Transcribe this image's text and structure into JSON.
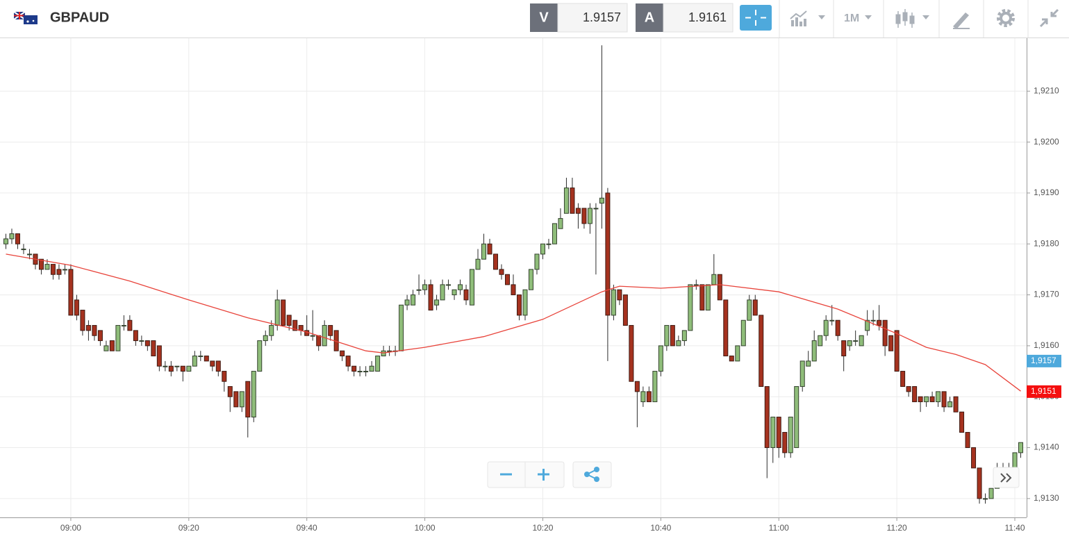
{
  "toolbar": {
    "symbol": "GBPAUD",
    "bid_label": "V",
    "bid": "1.9157",
    "ask_label": "A",
    "ask": "1.9161",
    "interval": "1M"
  },
  "chart_data": {
    "type": "candlestick",
    "x": [
      "08:49",
      "08:50",
      "08:51",
      "08:52",
      "08:53",
      "08:54",
      "08:55",
      "08:56",
      "08:57",
      "08:58",
      "08:59",
      "09:00",
      "09:01",
      "09:02",
      "09:03",
      "09:04",
      "09:05",
      "09:06",
      "09:07",
      "09:08",
      "09:09",
      "09:10",
      "09:11",
      "09:12",
      "09:13",
      "09:14",
      "09:15",
      "09:16",
      "09:17",
      "09:18",
      "09:19",
      "09:20",
      "09:21",
      "09:22",
      "09:23",
      "09:24",
      "09:25",
      "09:26",
      "09:27",
      "09:28",
      "09:29",
      "09:30",
      "09:31",
      "09:32",
      "09:33",
      "09:34",
      "09:35",
      "09:36",
      "09:37",
      "09:38",
      "09:39",
      "09:40",
      "09:41",
      "09:42",
      "09:43",
      "09:44",
      "09:45",
      "09:46",
      "09:47",
      "09:48",
      "09:49",
      "09:50",
      "09:51",
      "09:52",
      "09:53",
      "09:54",
      "09:55",
      "09:56",
      "09:57",
      "09:58",
      "09:59",
      "10:00",
      "10:01",
      "10:02",
      "10:03",
      "10:04",
      "10:05",
      "10:06",
      "10:07",
      "10:08",
      "10:09",
      "10:10",
      "10:11",
      "10:12",
      "10:13",
      "10:14",
      "10:15",
      "10:16",
      "10:17",
      "10:18",
      "10:19",
      "10:20",
      "10:21",
      "10:22",
      "10:23",
      "10:24",
      "10:25",
      "10:26",
      "10:27",
      "10:28",
      "10:29",
      "10:30",
      "10:31",
      "10:32",
      "10:33",
      "10:34",
      "10:35",
      "10:36",
      "10:37",
      "10:38",
      "10:39",
      "10:40",
      "10:41",
      "10:42",
      "10:43",
      "10:44",
      "10:45",
      "10:46",
      "10:47",
      "10:48",
      "10:49",
      "10:50",
      "10:51",
      "10:52",
      "10:53",
      "10:54",
      "10:55",
      "10:56",
      "10:57",
      "10:58",
      "10:59",
      "11:00",
      "11:01",
      "11:02",
      "11:03",
      "11:04",
      "11:05",
      "11:06",
      "11:07",
      "11:08",
      "11:09",
      "11:10",
      "11:11",
      "11:12",
      "11:13",
      "11:14",
      "11:15",
      "11:16",
      "11:17",
      "11:18",
      "11:19",
      "11:20",
      "11:21",
      "11:22",
      "11:23",
      "11:24",
      "11:25",
      "11:26",
      "11:27",
      "11:28",
      "11:29",
      "11:30",
      "11:31",
      "11:32",
      "11:33",
      "11:34",
      "11:35",
      "11:36",
      "11:37",
      "11:38",
      "11:39",
      "11:40",
      "11:41"
    ],
    "open": [
      1.918,
      1.9181,
      1.9182,
      1.9179,
      1.9178,
      1.9178,
      1.9177,
      1.9175,
      1.9176,
      1.9175,
      1.9175,
      1.9175,
      1.9169,
      1.9167,
      1.9164,
      1.9164,
      1.9163,
      1.9159,
      1.9161,
      1.9159,
      1.9164,
      1.9165,
      1.9163,
      1.9161,
      1.9161,
      1.9161,
      1.916,
      1.9156,
      1.9156,
      1.9156,
      1.9156,
      1.9155,
      1.9156,
      1.9158,
      1.9158,
      1.9157,
      1.9157,
      1.9155,
      1.9152,
      1.9151,
      1.9148,
      1.9153,
      1.9146,
      1.9155,
      1.9161,
      1.9162,
      1.9164,
      1.9169,
      1.9166,
      1.9165,
      1.9164,
      1.9163,
      1.9162,
      1.9162,
      1.916,
      1.9164,
      1.9163,
      1.9159,
      1.9158,
      1.9156,
      1.9155,
      1.9155,
      1.9155,
      1.9155,
      1.9158,
      1.9159,
      1.9159,
      1.9159,
      1.9168,
      1.9168,
      1.9171,
      1.9171,
      1.9172,
      1.9168,
      1.9169,
      1.9172,
      1.917,
      1.9171,
      1.9171,
      1.9168,
      1.9175,
      1.9177,
      1.918,
      1.9178,
      1.9175,
      1.9174,
      1.9172,
      1.917,
      1.9166,
      1.9171,
      1.9175,
      1.9178,
      1.918,
      1.918,
      1.9183,
      1.9186,
      1.9191,
      1.9187,
      1.9187,
      1.9184,
      1.9187,
      1.9188,
      1.919,
      1.9166,
      1.9171,
      1.917,
      1.9164,
      1.9153,
      1.9149,
      1.9151,
      1.9149,
      1.9155,
      1.916,
      1.9164,
      1.916,
      1.9161,
      1.9163,
      1.9172,
      1.9172,
      1.9167,
      1.9172,
      1.9174,
      1.9169,
      1.9158,
      1.9157,
      1.916,
      1.9165,
      1.9169,
      1.9166,
      1.9152,
      1.914,
      1.9146,
      1.9143,
      1.9139,
      1.914,
      1.9152,
      1.9156,
      1.9157,
      1.916,
      1.9162,
      1.9165,
      1.9165,
      1.9161,
      1.916,
      1.9161,
      1.916,
      1.9163,
      1.9165,
      1.9165,
      1.9165,
      1.9162,
      1.9163,
      1.9155,
      1.9152,
      1.9152,
      1.915,
      1.9149,
      1.915,
      1.9149,
      1.9151,
      1.9148,
      1.915,
      1.9147,
      1.9143,
      1.914,
      1.9136,
      1.913,
      1.913,
      1.9132,
      1.9135,
      1.9136,
      1.9136,
      1.9139
    ],
    "high": [
      1.9182,
      1.9183,
      1.9182,
      1.918,
      1.9179,
      1.9178,
      1.9177,
      1.9177,
      1.9176,
      1.9176,
      1.9176,
      1.9176,
      1.917,
      1.9167,
      1.9165,
      1.9164,
      1.9163,
      1.9161,
      1.9161,
      1.9164,
      1.9166,
      1.9166,
      1.9163,
      1.9162,
      1.9161,
      1.9161,
      1.916,
      1.9157,
      1.9157,
      1.9156,
      1.9156,
      1.9156,
      1.9159,
      1.9159,
      1.9158,
      1.9157,
      1.9157,
      1.9155,
      1.9152,
      1.9151,
      1.9151,
      1.9153,
      1.9155,
      1.9161,
      1.9163,
      1.9165,
      1.9171,
      1.9169,
      1.9166,
      1.9165,
      1.9164,
      1.9166,
      1.9167,
      1.9162,
      1.9165,
      1.9164,
      1.9163,
      1.9159,
      1.9158,
      1.9156,
      1.9156,
      1.9156,
      1.9157,
      1.9158,
      1.916,
      1.916,
      1.916,
      1.9168,
      1.917,
      1.9171,
      1.9174,
      1.9173,
      1.9173,
      1.917,
      1.9173,
      1.9173,
      1.9171,
      1.9173,
      1.9172,
      1.9175,
      1.9179,
      1.9182,
      1.9181,
      1.9178,
      1.9176,
      1.9174,
      1.9174,
      1.917,
      1.9171,
      1.9175,
      1.9178,
      1.918,
      1.9181,
      1.9184,
      1.9187,
      1.9193,
      1.9193,
      1.9188,
      1.9187,
      1.9188,
      1.9188,
      1.9219,
      1.9191,
      1.9172,
      1.9171,
      1.917,
      1.9164,
      1.9153,
      1.9152,
      1.9152,
      1.9155,
      1.916,
      1.9164,
      1.9164,
      1.9162,
      1.9163,
      1.9172,
      1.9173,
      1.9172,
      1.9172,
      1.9178,
      1.9174,
      1.9169,
      1.9158,
      1.916,
      1.9165,
      1.917,
      1.917,
      1.9166,
      1.9152,
      1.9146,
      1.9146,
      1.9143,
      1.9146,
      1.9152,
      1.9157,
      1.9159,
      1.9163,
      1.9162,
      1.9166,
      1.9168,
      1.9165,
      1.9161,
      1.9161,
      1.9163,
      1.9162,
      1.9167,
      1.9167,
      1.9168,
      1.9165,
      1.9162,
      1.9163,
      1.9155,
      1.9152,
      1.9152,
      1.915,
      1.915,
      1.9151,
      1.9151,
      1.9151,
      1.915,
      1.915,
      1.9147,
      1.9143,
      1.914,
      1.9136,
      1.9131,
      1.9132,
      1.9137,
      1.9137,
      1.9137,
      1.9139,
      1.9141
    ],
    "low": [
      1.9179,
      1.918,
      1.9179,
      1.9178,
      1.9177,
      1.9175,
      1.9174,
      1.9175,
      1.9173,
      1.9173,
      1.9174,
      1.9166,
      1.9165,
      1.9162,
      1.9161,
      1.9161,
      1.916,
      1.9159,
      1.9159,
      1.9159,
      1.9163,
      1.9163,
      1.916,
      1.916,
      1.9159,
      1.9158,
      1.9155,
      1.9155,
      1.9154,
      1.9155,
      1.9153,
      1.9155,
      1.9156,
      1.9157,
      1.9157,
      1.9155,
      1.9154,
      1.9151,
      1.9147,
      1.9148,
      1.9147,
      1.9142,
      1.9145,
      1.9155,
      1.916,
      1.9161,
      1.9163,
      1.9164,
      1.9163,
      1.9163,
      1.9162,
      1.9162,
      1.9161,
      1.9159,
      1.916,
      1.9161,
      1.9159,
      1.9157,
      1.9155,
      1.9154,
      1.9154,
      1.9154,
      1.9155,
      1.9155,
      1.9158,
      1.9158,
      1.9158,
      1.9159,
      1.9167,
      1.9168,
      1.917,
      1.917,
      1.9167,
      1.9167,
      1.9169,
      1.9171,
      1.9169,
      1.917,
      1.9168,
      1.9168,
      1.9175,
      1.9177,
      1.9178,
      1.9175,
      1.9173,
      1.9172,
      1.917,
      1.9165,
      1.9165,
      1.9171,
      1.9174,
      1.9177,
      1.9179,
      1.918,
      1.9183,
      1.9186,
      1.9186,
      1.9183,
      1.9183,
      1.9182,
      1.9174,
      1.9183,
      1.9157,
      1.9165,
      1.9168,
      1.9164,
      1.9153,
      1.9144,
      1.9148,
      1.9149,
      1.9149,
      1.9154,
      1.9159,
      1.916,
      1.916,
      1.916,
      1.9163,
      1.9171,
      1.9167,
      1.9167,
      1.9172,
      1.9169,
      1.9158,
      1.9157,
      1.9157,
      1.916,
      1.9165,
      1.9166,
      1.9152,
      1.9134,
      1.9137,
      1.9138,
      1.9138,
      1.9138,
      1.914,
      1.9151,
      1.9156,
      1.9157,
      1.916,
      1.9161,
      1.9164,
      1.9161,
      1.9155,
      1.9159,
      1.916,
      1.916,
      1.9162,
      1.9164,
      1.9163,
      1.9158,
      1.9159,
      1.9155,
      1.9152,
      1.915,
      1.9149,
      1.9147,
      1.9148,
      1.9149,
      1.9148,
      1.9147,
      1.9148,
      1.9147,
      1.9143,
      1.914,
      1.9136,
      1.9129,
      1.9129,
      1.913,
      1.9132,
      1.9134,
      1.9135,
      1.9135,
      1.9138
    ],
    "close": [
      1.9181,
      1.9182,
      1.918,
      1.9179,
      1.9178,
      1.9176,
      1.9175,
      1.9176,
      1.9174,
      1.9174,
      1.9175,
      1.9166,
      1.9166,
      1.9163,
      1.9163,
      1.9162,
      1.9161,
      1.916,
      1.9159,
      1.9164,
      1.9164,
      1.9163,
      1.9161,
      1.9161,
      1.916,
      1.9158,
      1.9156,
      1.9156,
      1.9155,
      1.9156,
      1.9155,
      1.9156,
      1.9158,
      1.9158,
      1.9157,
      1.9156,
      1.9155,
      1.9153,
      1.915,
      1.9148,
      1.9151,
      1.9146,
      1.9155,
      1.9161,
      1.9162,
      1.9164,
      1.9169,
      1.9164,
      1.9164,
      1.9163,
      1.9163,
      1.9162,
      1.9162,
      1.916,
      1.9164,
      1.9162,
      1.9159,
      1.9158,
      1.9156,
      1.9155,
      1.9155,
      1.9155,
      1.9156,
      1.9158,
      1.9159,
      1.9159,
      1.9159,
      1.9168,
      1.9169,
      1.917,
      1.9171,
      1.9172,
      1.9167,
      1.9169,
      1.9172,
      1.9172,
      1.9171,
      1.9172,
      1.9169,
      1.9175,
      1.9177,
      1.918,
      1.9178,
      1.9175,
      1.9174,
      1.9172,
      1.917,
      1.9166,
      1.9171,
      1.9175,
      1.9178,
      1.918,
      1.918,
      1.9184,
      1.9185,
      1.9191,
      1.9186,
      1.9186,
      1.9184,
      1.9187,
      1.9187,
      1.9189,
      1.9166,
      1.9171,
      1.9169,
      1.9164,
      1.9153,
      1.9151,
      1.9151,
      1.9149,
      1.9155,
      1.916,
      1.9164,
      1.916,
      1.9161,
      1.9163,
      1.9172,
      1.9172,
      1.9167,
      1.9172,
      1.9174,
      1.9169,
      1.9158,
      1.9157,
      1.916,
      1.9165,
      1.9169,
      1.9166,
      1.9152,
      1.914,
      1.9146,
      1.914,
      1.9139,
      1.9146,
      1.9152,
      1.9157,
      1.9157,
      1.9161,
      1.9162,
      1.9165,
      1.9165,
      1.9162,
      1.9158,
      1.9161,
      1.9161,
      1.9162,
      1.9165,
      1.9165,
      1.9164,
      1.916,
      1.9159,
      1.9155,
      1.9152,
      1.9151,
      1.9149,
      1.9149,
      1.915,
      1.9149,
      1.9151,
      1.9148,
      1.9149,
      1.9147,
      1.9143,
      1.914,
      1.9136,
      1.913,
      1.913,
      1.9132,
      1.9135,
      1.9136,
      1.9136,
      1.9139,
      1.9141
    ],
    "up_color": "#8fbd7a",
    "down_color": "#a5321f",
    "overlay": {
      "type": "line",
      "color": "#e8433a",
      "x": [
        "08:49",
        "09:00",
        "09:10",
        "09:20",
        "09:30",
        "09:40",
        "09:50",
        "09:53",
        "10:00",
        "10:10",
        "10:20",
        "10:30",
        "10:33",
        "10:40",
        "10:50",
        "11:00",
        "11:10",
        "11:20",
        "11:25",
        "11:30",
        "11:35",
        "11:41"
      ],
      "values": [
        1.9178,
        1.91758,
        1.91727,
        1.9169,
        1.91655,
        1.91627,
        1.9159,
        1.91586,
        1.91597,
        1.91618,
        1.91652,
        1.91706,
        1.91717,
        1.91713,
        1.9172,
        1.91706,
        1.91672,
        1.91624,
        1.91597,
        1.91583,
        1.91563,
        1.91511
      ]
    },
    "xlim": [
      "08:48",
      "11:42"
    ],
    "xticks": [
      "09:00",
      "09:20",
      "09:40",
      "10:00",
      "10:20",
      "10:40",
      "11:00",
      "11:20",
      "11:40"
    ],
    "ylim": [
      1.91263,
      1.92204
    ],
    "yticks": [
      {
        "value": 1.913,
        "label": "1,9130"
      },
      {
        "value": 1.914,
        "label": "1,9140"
      },
      {
        "value": 1.915,
        "label": "1,9150"
      },
      {
        "value": 1.916,
        "label": "1,9160"
      },
      {
        "value": 1.917,
        "label": "1,9170"
      },
      {
        "value": 1.918,
        "label": "1,9180"
      },
      {
        "value": 1.919,
        "label": "1,9190"
      },
      {
        "value": 1.92,
        "label": "1,9200"
      },
      {
        "value": 1.921,
        "label": "1,9210"
      }
    ],
    "price_markers": [
      {
        "value": 1.9157,
        "label": "1,9157",
        "color": "#4ea9dc"
      },
      {
        "value": 1.9151,
        "label": "1,9151",
        "color": "#f40f0f"
      }
    ],
    "grid": true
  }
}
